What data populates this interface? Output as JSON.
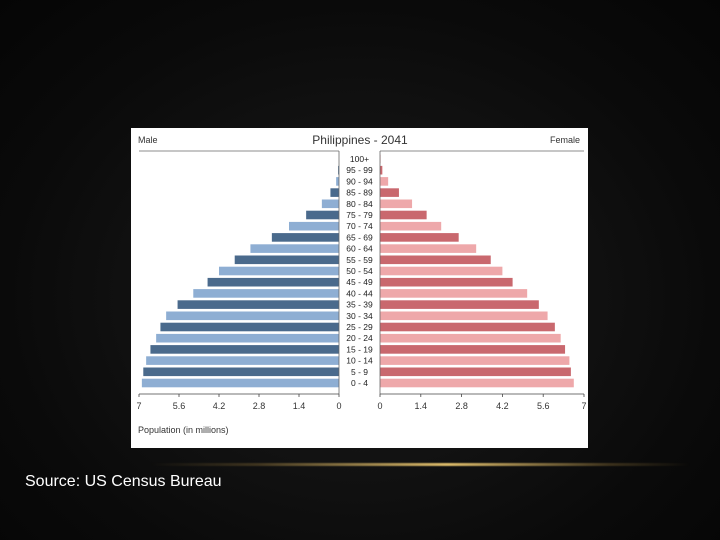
{
  "slide": {
    "source": "Source: US Census Bureau"
  },
  "colors": {
    "male_dark": "#4a6a8c",
    "male_light": "#8eaed3",
    "female_dark": "#c9686e",
    "female_light": "#eea8aa"
  },
  "chart_data": {
    "type": "bar",
    "subtype": "population-pyramid",
    "title": "Philippines - 2041",
    "left_label": "Male",
    "right_label": "Female",
    "xlabel": "Population (in millions)",
    "unit": "millions",
    "xlim": [
      0,
      7
    ],
    "x_ticks": [
      7,
      5.6,
      4.2,
      2.8,
      1.4,
      0
    ],
    "x_tick_labels": [
      "7",
      "5.6",
      "4.2",
      "2.8",
      "1.4",
      "0"
    ],
    "categories": [
      "100+",
      "95 - 99",
      "90 - 94",
      "85 - 89",
      "80 - 84",
      "75 - 79",
      "70 - 74",
      "65 - 69",
      "60 - 64",
      "55 - 59",
      "50 - 54",
      "45 - 49",
      "40 - 44",
      "35 - 39",
      "30 - 34",
      "25 - 29",
      "20 - 24",
      "15 - 19",
      "10 - 14",
      "5 - 9",
      "0 - 4"
    ],
    "series": [
      {
        "name": "Male",
        "values": [
          0.0,
          0.03,
          0.1,
          0.3,
          0.6,
          1.15,
          1.75,
          2.35,
          3.1,
          3.65,
          4.2,
          4.6,
          5.1,
          5.65,
          6.05,
          6.25,
          6.4,
          6.6,
          6.75,
          6.85,
          6.9
        ]
      },
      {
        "name": "Female",
        "values": [
          0.02,
          0.08,
          0.28,
          0.65,
          1.1,
          1.6,
          2.1,
          2.7,
          3.3,
          3.8,
          4.2,
          4.55,
          5.05,
          5.45,
          5.75,
          6.0,
          6.2,
          6.35,
          6.5,
          6.55,
          6.65
        ]
      }
    ]
  }
}
